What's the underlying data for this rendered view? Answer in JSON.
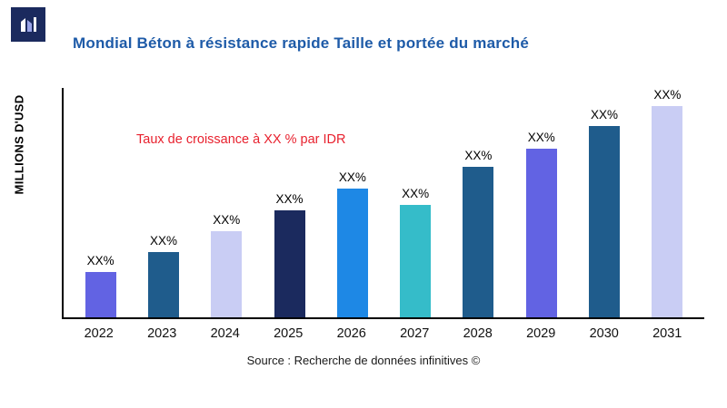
{
  "page": {
    "title": "Mondial Béton à résistance rapide Taille et portée du marché",
    "source": "Source : Recherche de données infinitives ©",
    "title_color": "#1e5ba8"
  },
  "annotation": {
    "growth_note": "Taux de croissance à XX % par IDR",
    "color": "#e8212e"
  },
  "chart_data": {
    "type": "bar",
    "title": "Mondial Béton à résistance rapide Taille et portée du marché",
    "xlabel": "",
    "ylabel": "MILLIONS D'USD",
    "categories": [
      "2022",
      "2023",
      "2024",
      "2025",
      "2026",
      "2027",
      "2028",
      "2029",
      "2030",
      "2031"
    ],
    "values": [
      49,
      71,
      94,
      117,
      140,
      123,
      164,
      184,
      209,
      233
    ],
    "value_labels": [
      "XX%",
      "XX%",
      "XX%",
      "XX%",
      "XX%",
      "XX%",
      "XX%",
      "XX%",
      "XX%",
      "XX%"
    ],
    "bar_colors": [
      "#6263e3",
      "#1f5c8c",
      "#c9cdf4",
      "#1b2a5e",
      "#1e88e5",
      "#35bcc9",
      "#1f5c8c",
      "#6263e3",
      "#1f5c8c",
      "#c9cdf4"
    ],
    "ylim": [
      0,
      250
    ],
    "grid": false,
    "legend": null,
    "annotation": "Taux de croissance à XX % par IDR",
    "note": "Values are unlabeled in source (XX%); numeric values estimated from relative bar heights."
  }
}
